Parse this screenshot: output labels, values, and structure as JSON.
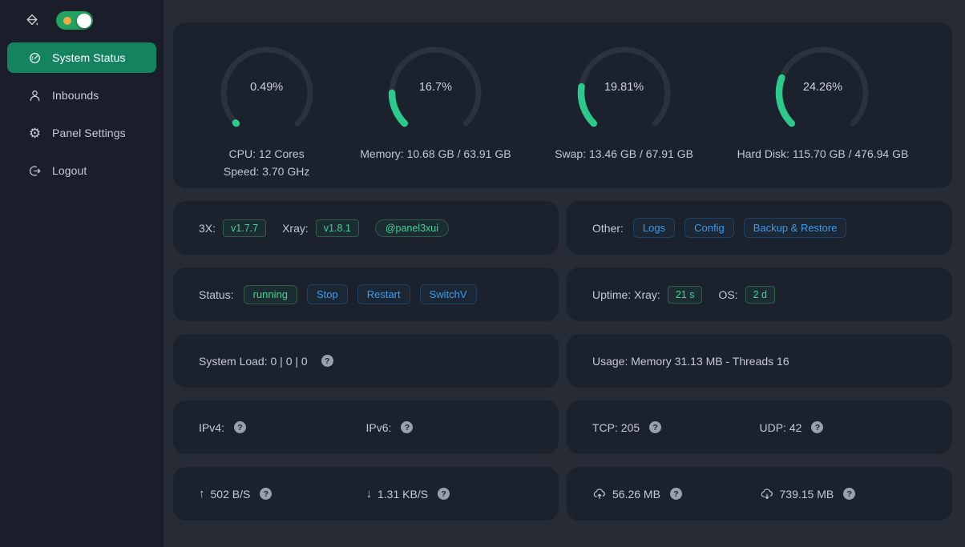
{
  "colors": {
    "sidebar_active_green": "#15835F",
    "gauge_green": "#2BC98B",
    "tag_green_text": "#42D392",
    "button_blue_text": "#3B9BE9",
    "toggle_green": "#23A25F",
    "toggle_dot_orange": "#EFA94A",
    "card_bg": "#1B212D",
    "main_bg": "#262B36",
    "sidebar_bg": "#191E2A"
  },
  "glyphs": {
    "question": "?",
    "arrow_up": "↑",
    "arrow_down": "↓"
  },
  "sidebar": {
    "items": [
      {
        "label": "System Status",
        "active": true
      },
      {
        "label": "Inbounds"
      },
      {
        "label": "Panel Settings"
      },
      {
        "label": "Logout"
      }
    ]
  },
  "gauges": [
    {
      "percent": "0.49%",
      "value": 0.49,
      "lines": [
        "CPU: 12 Cores",
        "Speed: 3.70 GHz"
      ]
    },
    {
      "percent": "16.7%",
      "value": 16.7,
      "lines": [
        "Memory: 10.68 GB / 63.91 GB"
      ]
    },
    {
      "percent": "19.81%",
      "value": 19.81,
      "lines": [
        "Swap: 13.46 GB / 67.91 GB"
      ]
    },
    {
      "percent": "24.26%",
      "value": 24.26,
      "lines": [
        "Hard Disk: 115.70 GB / 476.94 GB"
      ]
    }
  ],
  "cards": {
    "versions": {
      "label_3x": "3X:",
      "tag_3x": "v1.7.7",
      "label_xray": "Xray:",
      "tag_xray": "v1.8.1",
      "telegram_tag": "@panel3xui"
    },
    "other": {
      "label": "Other:",
      "buttons": [
        "Logs",
        "Config",
        "Backup & Restore"
      ]
    },
    "status": {
      "label": "Status:",
      "state": "running",
      "buttons": [
        "Stop",
        "Restart",
        "SwitchV"
      ]
    },
    "uptime": {
      "label": "Uptime: Xray:",
      "xray_value": "21 s",
      "os_label": "OS:",
      "os_value": "2 d"
    },
    "system_load": {
      "text": "System Load: 0 | 0 | 0"
    },
    "usage": {
      "text": "Usage: Memory 31.13 MB - Threads 16"
    },
    "ip": {
      "ipv4_label": "IPv4:",
      "ipv6_label": "IPv6:"
    },
    "connections": {
      "tcp": "TCP: 205",
      "udp": "UDP: 42"
    },
    "net_speed": {
      "up": "502 B/S",
      "down": "1.31 KB/S"
    },
    "net_total": {
      "up": "56.26 MB",
      "down": "739.15 MB"
    }
  }
}
